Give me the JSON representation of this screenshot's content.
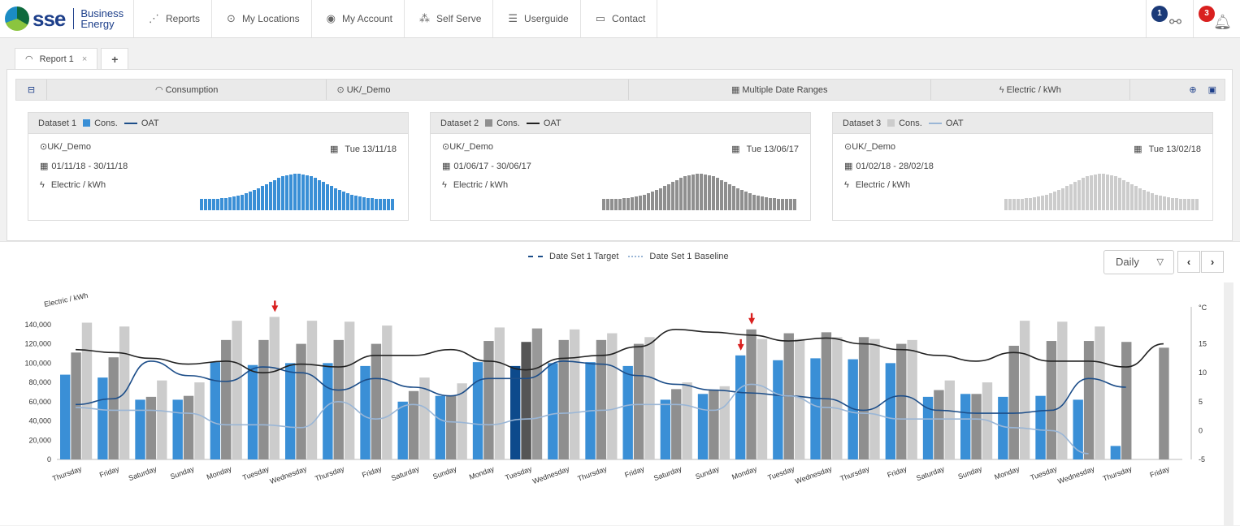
{
  "brand": {
    "name": "sse",
    "line1": "Business",
    "line2": "Energy"
  },
  "nav": [
    {
      "label": "Reports",
      "icon": "reports-icon",
      "glyph": "⋰"
    },
    {
      "label": "My Locations",
      "icon": "location-pin-icon",
      "glyph": "⊙"
    },
    {
      "label": "My Account",
      "icon": "user-circle-icon",
      "glyph": "◉"
    },
    {
      "label": "Self Serve",
      "icon": "sitemap-icon",
      "glyph": "⁂"
    },
    {
      "label": "Userguide",
      "icon": "list-icon",
      "glyph": "☰"
    },
    {
      "label": "Contact",
      "icon": "chat-icon",
      "glyph": "▭"
    }
  ],
  "notifications": {
    "share_count": "1",
    "alert_count": "3"
  },
  "tabs": {
    "report_label": "Report 1",
    "close": "×",
    "add": "+"
  },
  "filters": {
    "consumption": "Consumption",
    "location": "UK/_Demo",
    "dates": "Multiple Date Ranges",
    "unit": "Electric / kWh"
  },
  "datasets": [
    {
      "name": "Dataset 1",
      "cons": "Cons.",
      "oat": "OAT",
      "location": "UK/_Demo",
      "date": "Tue 13/11/18",
      "range": "01/11/18 - 30/11/18",
      "unit": "Electric / kWh",
      "color": "#3a8fd6",
      "line_color": "#1d4e89"
    },
    {
      "name": "Dataset 2",
      "cons": "Cons.",
      "oat": "OAT",
      "location": "UK/_Demo",
      "date": "Tue 13/06/17",
      "range": "01/06/17 - 30/06/17",
      "unit": "Electric / kWh",
      "color": "#8f8f8f",
      "line_color": "#222222"
    },
    {
      "name": "Dataset 3",
      "cons": "Cons.",
      "oat": "OAT",
      "location": "UK/_Demo",
      "date": "Tue 13/02/18",
      "range": "01/02/18 - 28/02/18",
      "unit": "Electric / kWh",
      "color": "#cccccc",
      "line_color": "#9ab6d6"
    }
  ],
  "legend": {
    "target": "Date Set 1 Target",
    "baseline": "Date Set 1 Baseline"
  },
  "controls": {
    "interval": "Daily",
    "prev": "‹",
    "next": "›"
  },
  "chart_data": {
    "type": "bar",
    "ylabel": "Electric / kWh",
    "y2label": "°C",
    "ylim": [
      0,
      150000
    ],
    "y_ticks": [
      "0",
      "20,000",
      "40,000",
      "60,000",
      "80,000",
      "100,000",
      "120,000",
      "140,000"
    ],
    "y2lim": [
      -5,
      20
    ],
    "y2_ticks": [
      "-5",
      "0",
      "5",
      "10",
      "15"
    ],
    "categories": [
      "Thursday",
      "Friday",
      "Saturday",
      "Sunday",
      "Monday",
      "Tuesday",
      "Wednesday",
      "Thursday",
      "Friday",
      "Saturday",
      "Sunday",
      "Monday",
      "Tuesday",
      "Wednesday",
      "Thursday",
      "Friday",
      "Saturday",
      "Sunday",
      "Monday",
      "Tuesday",
      "Wednesday",
      "Thursday",
      "Friday",
      "Saturday",
      "Sunday",
      "Monday",
      "Tuesday",
      "Wednesday",
      "Thursday",
      "Friday"
    ],
    "series": [
      {
        "values": [
          88000,
          85000,
          62000,
          62000,
          101000,
          98000,
          100000,
          100000,
          97000,
          60000,
          66000,
          101000,
          97000,
          100000,
          101000,
          97000,
          62000,
          68000,
          108000,
          103000,
          105000,
          104000,
          100000,
          65000,
          68000,
          65000,
          66000,
          62000,
          14000,
          null
        ],
        "color": "#3a8fd6"
      },
      {
        "values": [
          111000,
          106000,
          65000,
          66000,
          124000,
          124000,
          120000,
          124000,
          120000,
          71000,
          66000,
          123000,
          122000,
          124000,
          124000,
          120000,
          73000,
          72000,
          135000,
          131000,
          132000,
          127000,
          120000,
          72000,
          68000,
          118000,
          123000,
          123000,
          122000,
          116000
        ],
        "color": "#8f8f8f"
      },
      {
        "values": [
          142000,
          138000,
          82000,
          80000,
          144000,
          148000,
          144000,
          143000,
          139000,
          85000,
          79000,
          137000,
          136000,
          135000,
          131000,
          127000,
          80000,
          76000,
          125000,
          125000,
          127000,
          125000,
          124000,
          82000,
          80000,
          144000,
          143000,
          138000,
          null,
          null
        ],
        "color": "#cccccc"
      }
    ],
    "lines": [
      {
        "values": [
          4.5,
          5.5,
          12,
          9.5,
          8.5,
          11,
          10,
          7,
          9,
          7.5,
          6,
          9,
          9,
          12,
          11.5,
          9.5,
          8,
          7,
          6.5,
          6,
          5.5,
          3.5,
          6,
          3.5,
          3,
          3,
          3.5,
          9,
          7.5,
          null
        ],
        "color": "#1d4e89"
      },
      {
        "values": [
          14,
          13.5,
          12.5,
          11.5,
          12,
          10,
          11.5,
          11,
          13,
          13,
          14,
          12,
          10.5,
          12.5,
          13,
          14.5,
          17.5,
          17,
          16.5,
          15.5,
          16,
          15,
          14,
          13,
          12,
          13.5,
          12,
          12,
          11,
          15
        ],
        "color": "#222222"
      },
      {
        "values": [
          4,
          3.5,
          3.5,
          3,
          1,
          1,
          0.5,
          5,
          2,
          4.5,
          1.5,
          1,
          2,
          3,
          3.5,
          4.5,
          4.5,
          3.5,
          8,
          6,
          4,
          3,
          2,
          2,
          2,
          0.5,
          0,
          -4,
          null,
          null
        ],
        "color": "#9ab6d6"
      }
    ],
    "highlight_index": 12,
    "peak_markers": [
      {
        "index": 5,
        "series": 2
      },
      {
        "index": 18,
        "series": 1
      },
      {
        "index": 18,
        "series": 0
      }
    ],
    "grid": false,
    "legend_position": "top-center"
  }
}
